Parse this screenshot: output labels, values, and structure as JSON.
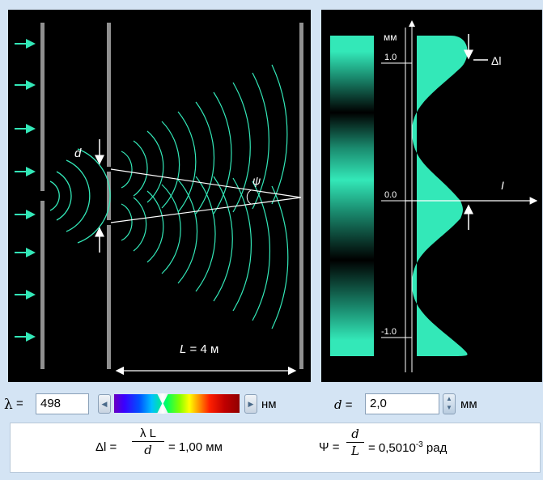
{
  "left_panel": {
    "slit_label": "d",
    "angle_label": "ψ",
    "distance_label_var": "L",
    "distance_label_rest": " = 4 м"
  },
  "right_panel": {
    "axis_unit": "мм",
    "tick_top": "1.0",
    "tick_mid": "0.0",
    "tick_bottom": "-1.0",
    "intensity_label": "I",
    "delta_label": "Δl"
  },
  "controls": {
    "lambda_symbol": "λ",
    "lambda_eq": " =",
    "lambda_value": "498",
    "lambda_unit": "нм",
    "d_label": "d",
    "d_eq": " =",
    "d_value": "2,0",
    "d_unit": "мм"
  },
  "formulas": {
    "delta_lhs_sym": "Δl =",
    "delta_num": "λ L",
    "delta_den": "d",
    "delta_result": "= 1,00 мм",
    "psi_lhs": "Ψ =",
    "psi_num": "d",
    "psi_den": "L",
    "psi_result_base": "= 0,5010",
    "psi_result_exp": "-3",
    "psi_result_unit": " рад"
  },
  "colors": {
    "accent": "#33e8b8",
    "panel_bg": "#000000",
    "app_bg": "#d4e4f4"
  }
}
